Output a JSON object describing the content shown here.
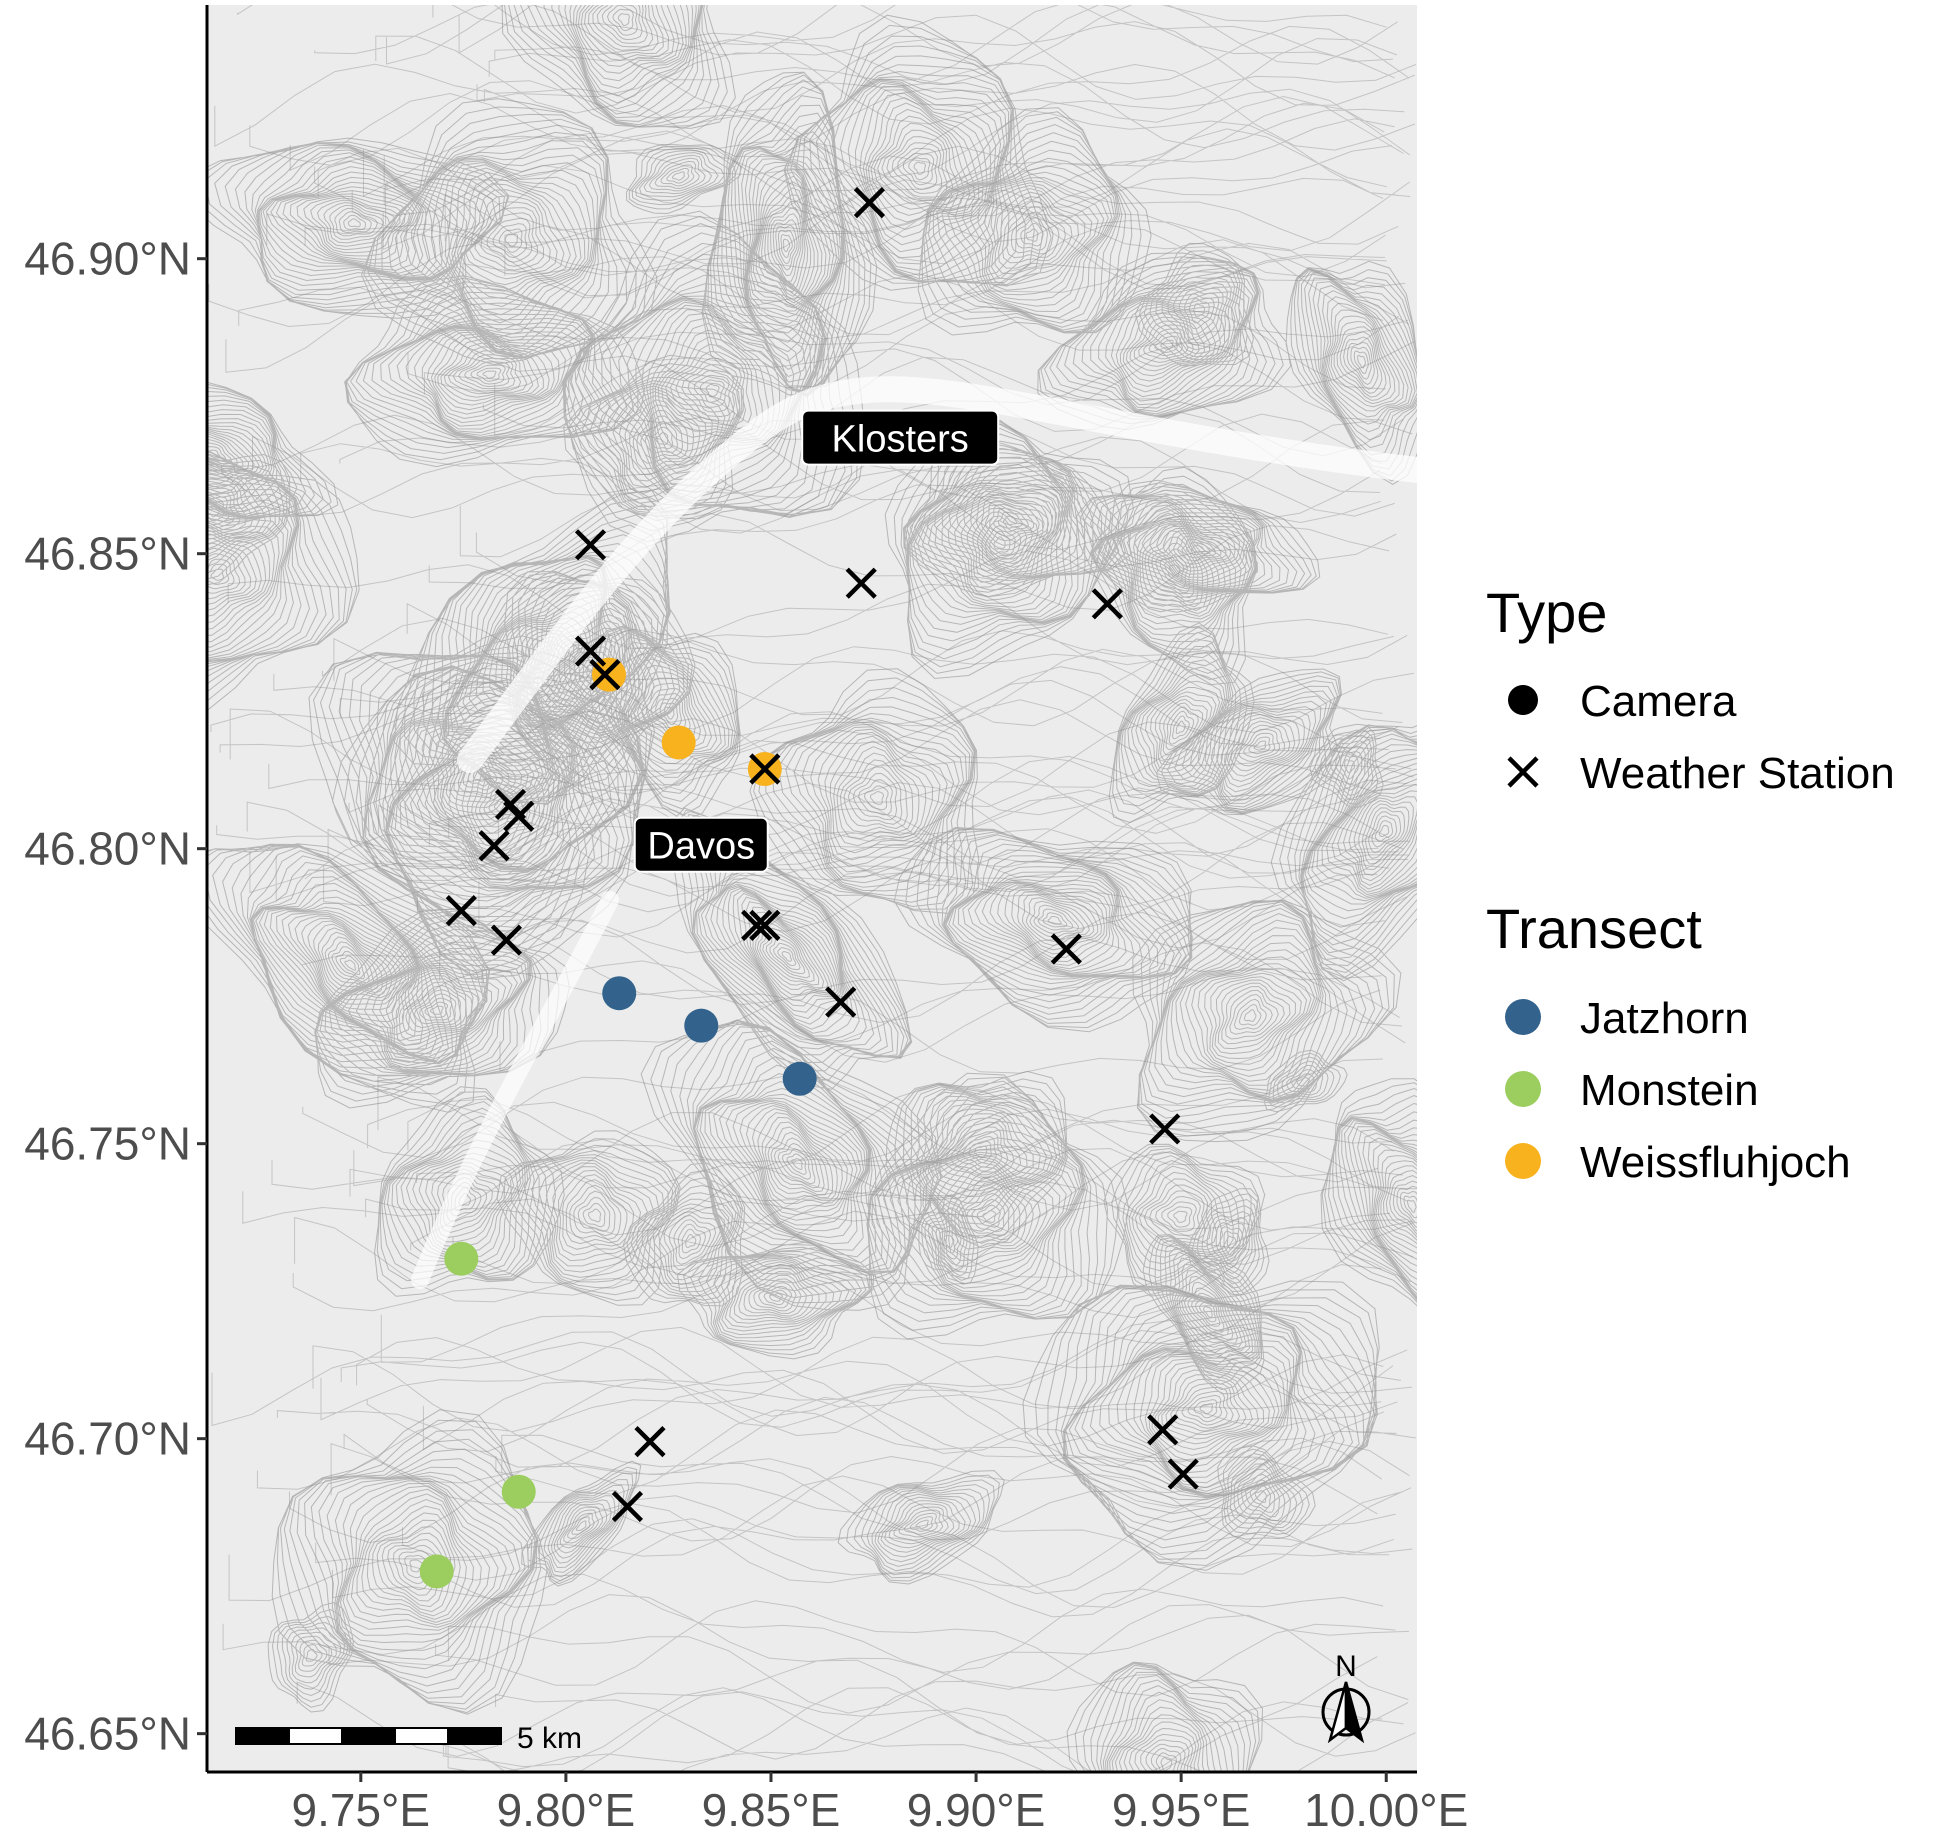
{
  "chart_data": {
    "type": "scatter",
    "title": "",
    "xlabel": "",
    "ylabel": "",
    "xlim": [
      9.7125,
      10.0075
    ],
    "ylim": [
      46.6435,
      46.943
    ],
    "x_ticks": [
      {
        "value": 9.75,
        "label": "9.75°E"
      },
      {
        "value": 9.8,
        "label": "9.80°E"
      },
      {
        "value": 9.85,
        "label": "9.85°E"
      },
      {
        "value": 9.9,
        "label": "9.90°E"
      },
      {
        "value": 9.95,
        "label": "9.95°E"
      },
      {
        "value": 10.0,
        "label": "10.00°E"
      }
    ],
    "y_ticks": [
      {
        "value": 46.65,
        "label": "46.65°N"
      },
      {
        "value": 46.7,
        "label": "46.70°N"
      },
      {
        "value": 46.75,
        "label": "46.75°N"
      },
      {
        "value": 46.8,
        "label": "46.80°N"
      },
      {
        "value": 46.85,
        "label": "46.85°N"
      },
      {
        "value": 46.9,
        "label": "46.90°N"
      }
    ],
    "basemap": "topographic contour lines (grey)",
    "place_labels": [
      {
        "name": "Klosters",
        "x": 9.8815,
        "y": 46.8695
      },
      {
        "name": "Davos",
        "x": 9.833,
        "y": 46.8005
      }
    ],
    "cameras": [
      {
        "transect": "Jatzhorn",
        "x": 9.813,
        "y": 46.7755
      },
      {
        "transect": "Jatzhorn",
        "x": 9.833,
        "y": 46.77
      },
      {
        "transect": "Jatzhorn",
        "x": 9.857,
        "y": 46.761
      },
      {
        "transect": "Monstein",
        "x": 9.7745,
        "y": 46.7305
      },
      {
        "transect": "Monstein",
        "x": 9.7885,
        "y": 46.691
      },
      {
        "transect": "Monstein",
        "x": 9.7685,
        "y": 46.6775
      },
      {
        "transect": "Weissfluhjoch",
        "x": 9.8105,
        "y": 46.8295
      },
      {
        "transect": "Weissfluhjoch",
        "x": 9.8275,
        "y": 46.818
      },
      {
        "transect": "Weissfluhjoch",
        "x": 9.8485,
        "y": 46.8135
      }
    ],
    "weather_stations": [
      {
        "x": 9.874,
        "y": 46.9095
      },
      {
        "x": 9.806,
        "y": 46.8515
      },
      {
        "x": 9.872,
        "y": 46.845
      },
      {
        "x": 9.932,
        "y": 46.8415
      },
      {
        "x": 9.806,
        "y": 46.8335
      },
      {
        "x": 9.8095,
        "y": 46.8295
      },
      {
        "x": 9.8485,
        "y": 46.8135
      },
      {
        "x": 9.7865,
        "y": 46.8075
      },
      {
        "x": 9.7885,
        "y": 46.8055
      },
      {
        "x": 9.7825,
        "y": 46.8005
      },
      {
        "x": 9.7745,
        "y": 46.7895
      },
      {
        "x": 9.7855,
        "y": 46.7845
      },
      {
        "x": 9.8465,
        "y": 46.787
      },
      {
        "x": 9.8485,
        "y": 46.787
      },
      {
        "x": 9.922,
        "y": 46.783
      },
      {
        "x": 9.867,
        "y": 46.774
      },
      {
        "x": 9.946,
        "y": 46.7525
      },
      {
        "x": 9.8205,
        "y": 46.6995
      },
      {
        "x": 9.9455,
        "y": 46.7015
      },
      {
        "x": 9.9505,
        "y": 46.694
      },
      {
        "x": 9.815,
        "y": 46.6885
      }
    ],
    "scale_bar": {
      "label": "5 km",
      "segments": 5
    },
    "north_arrow": {
      "label": "N"
    },
    "legend": {
      "placement": "right",
      "groups": [
        {
          "title": "Type",
          "items": [
            {
              "label": "Camera",
              "shape": "circle"
            },
            {
              "label": "Weather Station",
              "shape": "cross"
            }
          ]
        },
        {
          "title": "Transect",
          "items": [
            {
              "label": "Jatzhorn",
              "color": "#33638d"
            },
            {
              "label": "Monstein",
              "color": "#9bcd5f"
            },
            {
              "label": "Weissfluhjoch",
              "color": "#f7b21e"
            }
          ]
        }
      ]
    },
    "colors": {
      "Jatzhorn": "#33638d",
      "Monstein": "#9bcd5f",
      "Weissfluhjoch": "#f7b21e",
      "contour": "#8a8a8a",
      "background": "#ededed"
    }
  }
}
